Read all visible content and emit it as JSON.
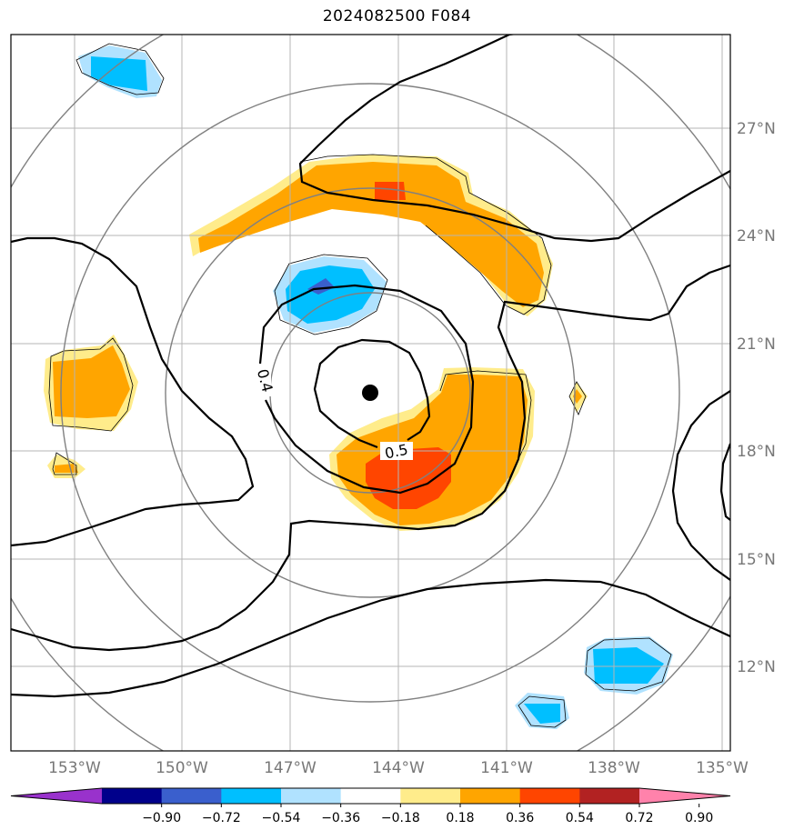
{
  "title": "2024082500 F084",
  "axes": {
    "lon_labels": [
      "153°W",
      "150°W",
      "147°W",
      "144°W",
      "141°W",
      "138°W",
      "135°W"
    ],
    "lat_labels": [
      "27°N",
      "24°N",
      "21°N",
      "18°N",
      "15°N",
      "12°N"
    ],
    "gridlines": true
  },
  "contour_labels": [
    "0.4",
    "0.5"
  ],
  "colorbar": {
    "orientation": "horizontal",
    "extend": "both",
    "tick_labels": [
      "−0.90",
      "−0.72",
      "−0.54",
      "−0.36",
      "−0.18",
      "0.18",
      "0.36",
      "0.54",
      "0.72",
      "0.90"
    ],
    "colors": [
      "#9932cc",
      "#00008b",
      "#3a5fcd",
      "#00bfff",
      "#b0e2ff",
      "#ffffff",
      "#ffec8b",
      "#ffa500",
      "#ff4500",
      "#b22222",
      "#ff82ab"
    ]
  },
  "center_marker": "black-dot"
}
